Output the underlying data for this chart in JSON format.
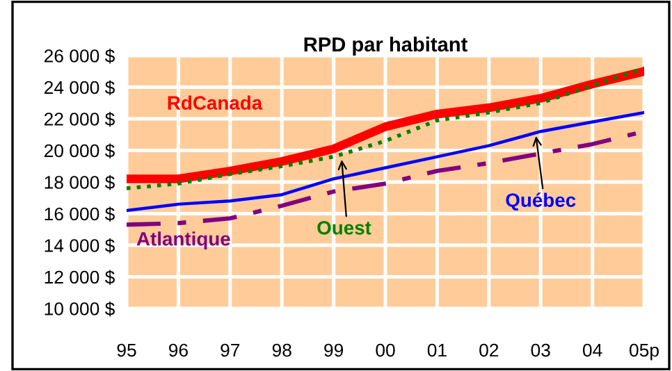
{
  "chart_data": {
    "type": "line",
    "title": "RPD par habitant",
    "categories": [
      "95",
      "96",
      "97",
      "98",
      "99",
      "00",
      "01",
      "02",
      "03",
      "04",
      "05p"
    ],
    "series": [
      {
        "name": "RdCanada",
        "color": "#ff0000",
        "line_style": "solid",
        "values": [
          18200,
          18200,
          18700,
          19300,
          20100,
          21500,
          22300,
          22700,
          23300,
          24200,
          25000
        ]
      },
      {
        "name": "Ouest",
        "color": "#008000",
        "line_style": "dotted",
        "values": [
          17600,
          17900,
          18500,
          19000,
          19600,
          20600,
          21900,
          22400,
          23000,
          24100,
          25200
        ]
      },
      {
        "name": "Québec",
        "color": "#0000ff",
        "line_style": "solid",
        "values": [
          16200,
          16600,
          16800,
          17200,
          18200,
          18900,
          19600,
          20300,
          21200,
          21800,
          22400
        ]
      },
      {
        "name": "Atlantique",
        "color": "#800080",
        "line_style": "dashdot",
        "values": [
          15300,
          15400,
          15700,
          16500,
          17400,
          17900,
          18700,
          19200,
          19800,
          20400,
          21200
        ]
      }
    ],
    "ylim": [
      10000,
      26000
    ],
    "yticks": [
      {
        "value": 10000,
        "label": "10 000 $"
      },
      {
        "value": 12000,
        "label": "12 000 $"
      },
      {
        "value": 14000,
        "label": "14 000 $"
      },
      {
        "value": 16000,
        "label": "16 000 $"
      },
      {
        "value": 18000,
        "label": "18 000 $"
      },
      {
        "value": 20000,
        "label": "20 000 $"
      },
      {
        "value": 22000,
        "label": "22 000 $"
      },
      {
        "value": 24000,
        "label": "24 000 $"
      },
      {
        "value": 26000,
        "label": "26 000 $"
      }
    ],
    "grid": true,
    "legend": false,
    "marker": "none"
  }
}
